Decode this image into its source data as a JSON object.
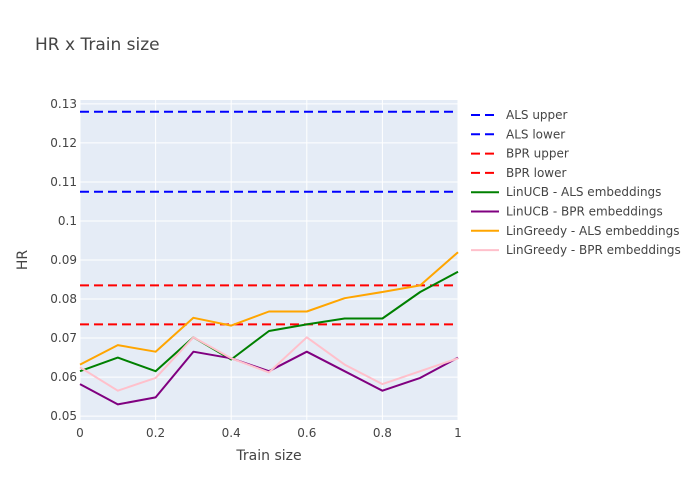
{
  "chart_data": {
    "type": "line",
    "title": "HR x Train size",
    "xlabel": "Train size",
    "ylabel": "HR",
    "xlim": [
      0,
      1
    ],
    "ylim": [
      0.049,
      0.131
    ],
    "x_ticks": [
      0,
      0.2,
      0.4,
      0.6,
      0.8,
      1
    ],
    "x_tick_labels": [
      "0",
      "0.2",
      "0.4",
      "0.6",
      "0.8",
      "1"
    ],
    "y_ticks": [
      0.05,
      0.06,
      0.07,
      0.08,
      0.09,
      0.1,
      0.11,
      0.12,
      0.13
    ],
    "y_tick_labels": [
      "0.05",
      "0.06",
      "0.07",
      "0.08",
      "0.09",
      "0.1",
      "0.11",
      "0.12",
      "0.13"
    ],
    "grid": true,
    "legend_position": "right",
    "plot_background": "#e5ecf6",
    "x": [
      0,
      0.1,
      0.2,
      0.3,
      0.4,
      0.5,
      0.6,
      0.7,
      0.8,
      0.9,
      1
    ],
    "series": [
      {
        "name": "ALS upper",
        "color": "#0000ff",
        "dash": "dashed",
        "values": [
          0.128,
          0.128,
          0.128,
          0.128,
          0.128,
          0.128,
          0.128,
          0.128,
          0.128,
          0.128,
          0.128
        ]
      },
      {
        "name": "ALS lower",
        "color": "#0000ff",
        "dash": "dashed",
        "values": [
          0.1075,
          0.1075,
          0.1075,
          0.1075,
          0.1075,
          0.1075,
          0.1075,
          0.1075,
          0.1075,
          0.1075,
          0.1075
        ]
      },
      {
        "name": "BPR upper",
        "color": "#ff0000",
        "dash": "dashed",
        "values": [
          0.0835,
          0.0835,
          0.0835,
          0.0835,
          0.0835,
          0.0835,
          0.0835,
          0.0835,
          0.0835,
          0.0835,
          0.0835
        ]
      },
      {
        "name": "BPR lower",
        "color": "#ff0000",
        "dash": "dashed",
        "values": [
          0.0735,
          0.0735,
          0.0735,
          0.0735,
          0.0735,
          0.0735,
          0.0735,
          0.0735,
          0.0735,
          0.0735,
          0.0735
        ]
      },
      {
        "name": "LinUCB - ALS embeddings",
        "color": "#008000",
        "dash": "solid",
        "values": [
          0.0615,
          0.065,
          0.0615,
          0.0702,
          0.0645,
          0.0718,
          0.0735,
          0.075,
          0.075,
          0.0818,
          0.087
        ]
      },
      {
        "name": "LinUCB - BPR embeddings",
        "color": "#800080",
        "dash": "solid",
        "values": [
          0.0582,
          0.053,
          0.0548,
          0.0665,
          0.0648,
          0.0615,
          0.0665,
          0.0615,
          0.0565,
          0.0598,
          0.065
        ]
      },
      {
        "name": "LinGreedy - ALS embeddings",
        "color": "#ffa500",
        "dash": "solid",
        "values": [
          0.0632,
          0.0682,
          0.0665,
          0.0752,
          0.0732,
          0.0768,
          0.0768,
          0.0802,
          0.0818,
          0.0835,
          0.092
        ]
      },
      {
        "name": "LinGreedy - BPR embeddings",
        "color": "#ffc0cb",
        "dash": "solid",
        "values": [
          0.0625,
          0.0565,
          0.0598,
          0.0702,
          0.0648,
          0.0612,
          0.0702,
          0.0632,
          0.0582,
          0.0615,
          0.0648
        ]
      }
    ]
  }
}
